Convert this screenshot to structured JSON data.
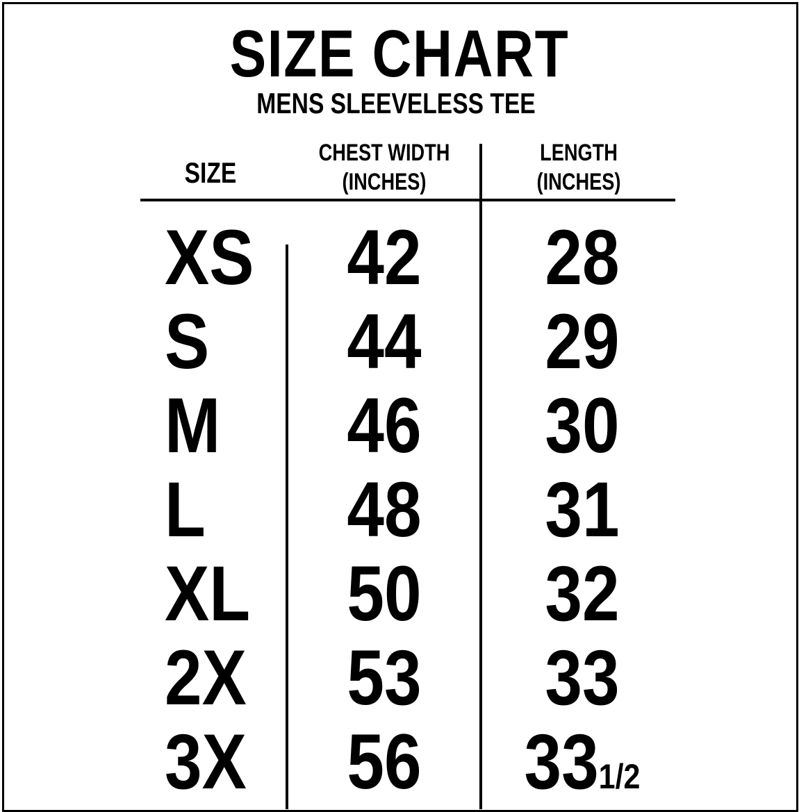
{
  "title": "SIZE CHART",
  "subtitle": "MENS SLEEVELESS TEE",
  "headers": {
    "size": "SIZE",
    "chest_line1": "CHEST WIDTH",
    "chest_line2": "(INCHES)",
    "length_line1": "LENGTH",
    "length_line2": "(INCHES)"
  },
  "rows": [
    {
      "size": "XS",
      "chest": "42",
      "length": "28",
      "length_frac": ""
    },
    {
      "size": "S",
      "chest": "44",
      "length": "29",
      "length_frac": ""
    },
    {
      "size": "M",
      "chest": "46",
      "length": "30",
      "length_frac": ""
    },
    {
      "size": "L",
      "chest": "48",
      "length": "31",
      "length_frac": ""
    },
    {
      "size": "XL",
      "chest": "50",
      "length": "32",
      "length_frac": ""
    },
    {
      "size": "2X",
      "chest": "53",
      "length": "33",
      "length_frac": ""
    },
    {
      "size": "3X",
      "chest": "56",
      "length": "33",
      "length_frac": "1/2"
    }
  ]
}
